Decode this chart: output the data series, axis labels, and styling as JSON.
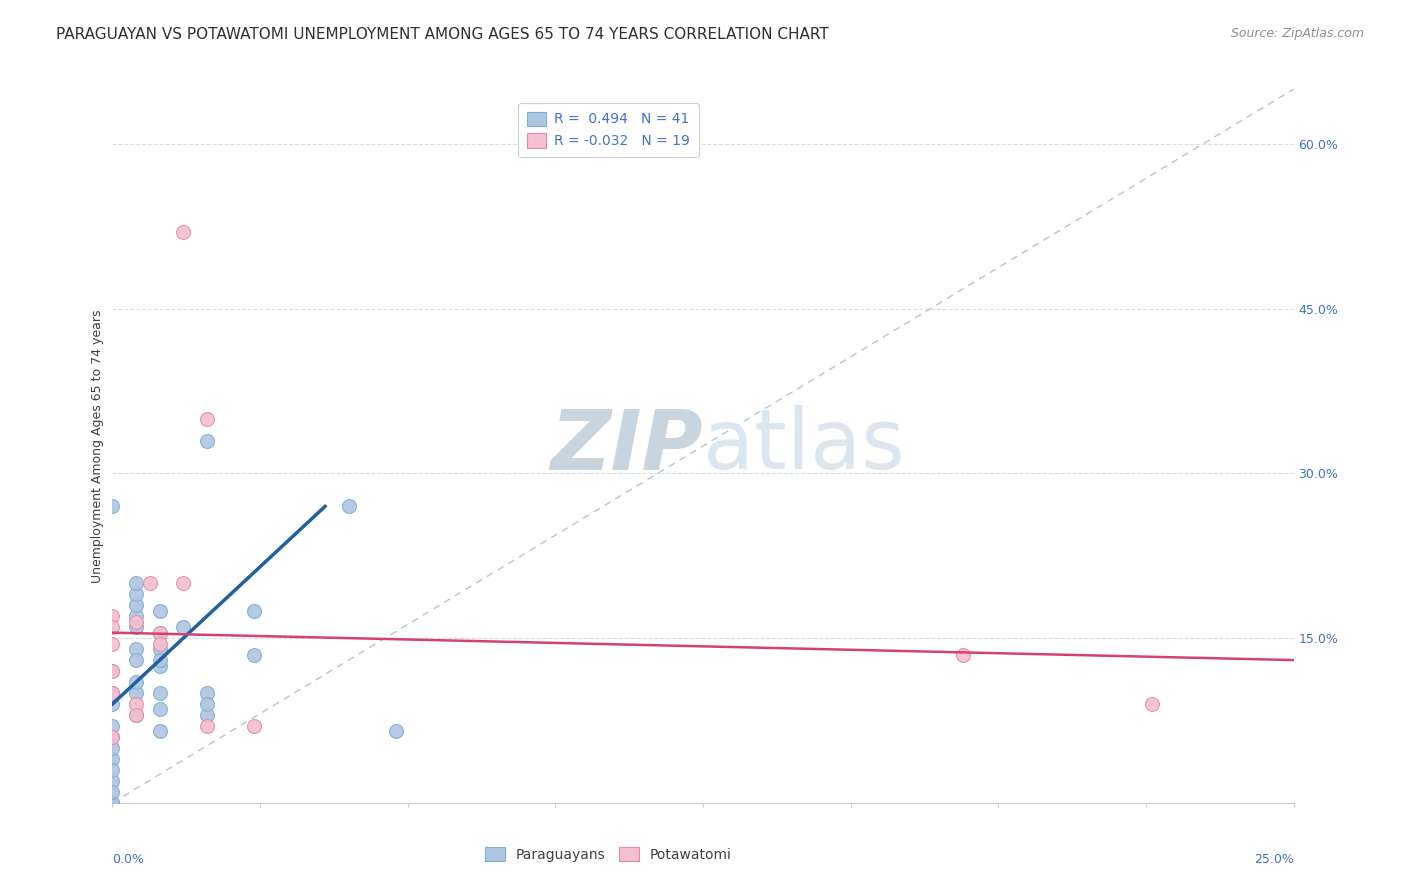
{
  "title": "PARAGUAYAN VS POTAWATOMI UNEMPLOYMENT AMONG AGES 65 TO 74 YEARS CORRELATION CHART",
  "source": "Source: ZipAtlas.com",
  "ylabel": "Unemployment Among Ages 65 to 74 years",
  "xlim": [
    0.0,
    0.25
  ],
  "ylim": [
    0.0,
    0.65
  ],
  "r_paraguayan": 0.494,
  "n_paraguayan": 41,
  "r_potawatomi": -0.032,
  "n_potawatomi": 19,
  "blue_scatter_color": "#aec6e0",
  "blue_edge_color": "#7dadd4",
  "pink_scatter_color": "#f5bfcf",
  "pink_edge_color": "#e888a8",
  "blue_line_color": "#2060a0",
  "pink_line_color": "#d84070",
  "ref_line_color": "#b8c4d0",
  "grid_color": "#d8dde2",
  "watermark_text": "ZIPatlas",
  "watermark_color": "#dce6f0",
  "paraguayan_points": [
    [
      0.0,
      0.27
    ],
    [
      0.0,
      0.04
    ],
    [
      0.0,
      0.06
    ],
    [
      0.0,
      0.09
    ],
    [
      0.0,
      0.1
    ],
    [
      0.0,
      0.12
    ],
    [
      0.0,
      0.0
    ],
    [
      0.0,
      0.02
    ],
    [
      0.0,
      0.0
    ],
    [
      0.0,
      0.05
    ],
    [
      0.005,
      0.17
    ],
    [
      0.005,
      0.16
    ],
    [
      0.005,
      0.14
    ],
    [
      0.005,
      0.18
    ],
    [
      0.005,
      0.13
    ],
    [
      0.005,
      0.1
    ],
    [
      0.005,
      0.08
    ],
    [
      0.005,
      0.11
    ],
    [
      0.01,
      0.175
    ],
    [
      0.01,
      0.155
    ],
    [
      0.01,
      0.125
    ],
    [
      0.01,
      0.065
    ],
    [
      0.01,
      0.1
    ],
    [
      0.01,
      0.085
    ],
    [
      0.02,
      0.33
    ],
    [
      0.02,
      0.08
    ],
    [
      0.03,
      0.175
    ],
    [
      0.03,
      0.135
    ],
    [
      0.05,
      0.27
    ],
    [
      0.06,
      0.065
    ],
    [
      0.0,
      0.0
    ],
    [
      0.0,
      0.01
    ],
    [
      0.0,
      0.03
    ],
    [
      0.0,
      0.07
    ],
    [
      0.005,
      0.19
    ],
    [
      0.005,
      0.2
    ],
    [
      0.01,
      0.14
    ],
    [
      0.01,
      0.13
    ],
    [
      0.02,
      0.1
    ],
    [
      0.02,
      0.09
    ],
    [
      0.015,
      0.16
    ]
  ],
  "potawatomi_points": [
    [
      0.015,
      0.52
    ],
    [
      0.02,
      0.35
    ],
    [
      0.0,
      0.17
    ],
    [
      0.0,
      0.16
    ],
    [
      0.0,
      0.145
    ],
    [
      0.0,
      0.12
    ],
    [
      0.0,
      0.1
    ],
    [
      0.005,
      0.09
    ],
    [
      0.005,
      0.08
    ],
    [
      0.008,
      0.2
    ],
    [
      0.005,
      0.165
    ],
    [
      0.01,
      0.155
    ],
    [
      0.01,
      0.145
    ],
    [
      0.015,
      0.2
    ],
    [
      0.02,
      0.07
    ],
    [
      0.03,
      0.07
    ],
    [
      0.18,
      0.135
    ],
    [
      0.22,
      0.09
    ],
    [
      0.0,
      0.06
    ]
  ],
  "blue_line_x": [
    0.0,
    0.045
  ],
  "blue_line_y": [
    0.09,
    0.27
  ],
  "pink_line_x": [
    0.0,
    0.25
  ],
  "pink_line_y": [
    0.155,
    0.13
  ],
  "ref_line_x": [
    0.0,
    0.25
  ],
  "ref_line_y": [
    0.0,
    0.65
  ],
  "yticks": [
    0.0,
    0.15,
    0.3,
    0.45,
    0.6
  ],
  "xticks": [
    0.0,
    0.03125,
    0.0625,
    0.09375,
    0.125,
    0.15625,
    0.1875,
    0.21875,
    0.25
  ],
  "legend_labels": [
    "Paraguayans",
    "Potawatomi"
  ],
  "title_fontsize": 11,
  "source_fontsize": 9,
  "ylabel_fontsize": 9,
  "tick_fontsize": 9,
  "legend_fontsize": 10,
  "scatter_size": 100
}
